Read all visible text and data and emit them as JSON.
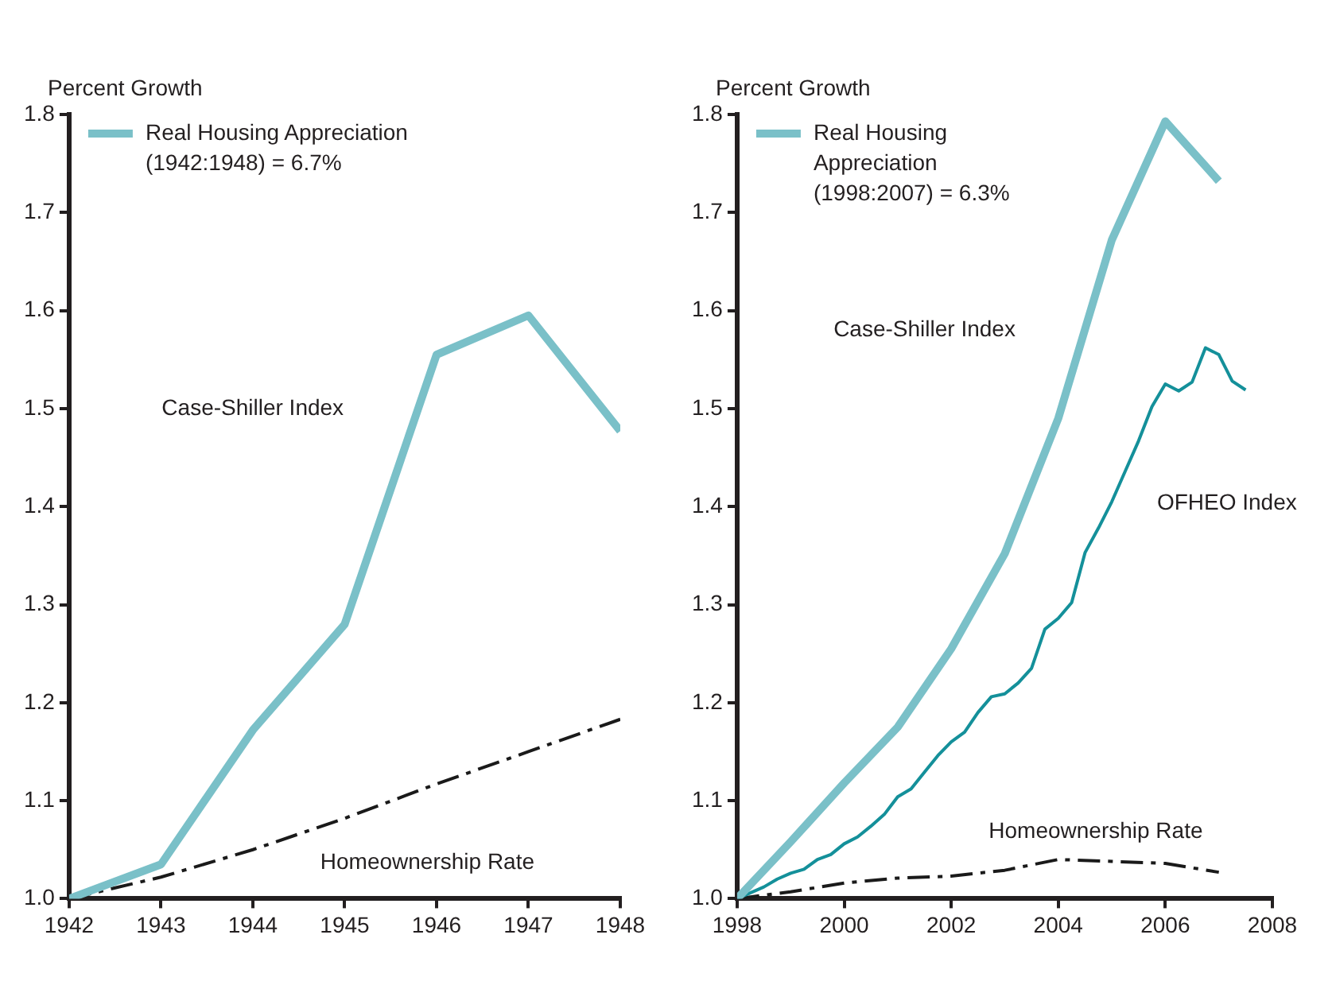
{
  "chart_data": [
    {
      "type": "line",
      "ylabel": "Percent Growth",
      "x": [
        1942,
        1943,
        1944,
        1945,
        1946,
        1947,
        1948
      ],
      "xlim": [
        1942,
        1948
      ],
      "xticks": [
        1942,
        1943,
        1944,
        1945,
        1946,
        1947,
        1948
      ],
      "ylim": [
        1.0,
        1.8
      ],
      "yticks": [
        {
          "value": 1.0,
          "label": "1.0"
        },
        1.1,
        1.2,
        1.3,
        1.4,
        1.5,
        1.6,
        1.7,
        1.8
      ],
      "grid": false,
      "legend": "top left",
      "marker": "none",
      "series": [
        {
          "name": "Real Housing Appreciation (1942:1948) = 6.7%",
          "color": "#7ac0c8",
          "values": [
            1.0,
            1.035,
            1.172,
            1.28,
            1.555,
            1.595,
            1.477
          ]
        },
        {
          "color": "#1a1a1a",
          "line_style": "dashed",
          "values": [
            1.0,
            1.022,
            1.05,
            1.082,
            1.117,
            1.15,
            1.183
          ]
        }
      ],
      "annotations": [
        "Case-Shiller Index",
        "Homeownership Rate"
      ]
    },
    {
      "type": "line",
      "ylabel": "Percent Growth",
      "x": [
        1998,
        1999,
        2000,
        2001,
        2002,
        2003,
        2004,
        2005,
        2006,
        2007
      ],
      "xlim": [
        1998,
        2008
      ],
      "xticks": [
        1998,
        2000,
        2002,
        2004,
        2006,
        2008
      ],
      "ylim": [
        1.0,
        1.8
      ],
      "yticks": [
        {
          "value": 1.0,
          "label": "1.0"
        },
        1.1,
        1.2,
        1.3,
        1.4,
        1.5,
        1.6,
        1.7,
        1.8
      ],
      "grid": false,
      "legend": "top left",
      "marker": "none",
      "series": [
        {
          "name": "Real Housing Appreciation (1998:2007) = 6.3%",
          "color": "#7ac0c8",
          "values": [
            1.0,
            1.058,
            1.118,
            1.175,
            1.255,
            1.352,
            1.49,
            1.672,
            1.793,
            1.732
          ]
        },
        {
          "color": "#14909a",
          "x": [
            1998,
            1998.5,
            1998.75,
            1999,
            1999.25,
            1999.5,
            1999.75,
            2000,
            2000.25,
            2000.5,
            2000.75,
            2001,
            2001.25,
            2001.5,
            2001.75,
            2002,
            2002.25,
            2002.5,
            2002.75,
            2003,
            2003.25,
            2003.5,
            2003.75,
            2004,
            2004.25,
            2004.5,
            2004.75,
            2005,
            2005.25,
            2005.5,
            2005.75,
            2006,
            2006.25,
            2006.5,
            2006.75,
            2007,
            2007.25,
            2007.5
          ],
          "values": [
            1.0,
            1.012,
            1.02,
            1.026,
            1.03,
            1.04,
            1.045,
            1.056,
            1.063,
            1.074,
            1.086,
            1.104,
            1.112,
            1.129,
            1.146,
            1.16,
            1.17,
            1.19,
            1.206,
            1.209,
            1.22,
            1.235,
            1.275,
            1.286,
            1.302,
            1.353,
            1.378,
            1.405,
            1.436,
            1.467,
            1.502,
            1.525,
            1.518,
            1.527,
            1.562,
            1.555,
            1.528,
            1.519
          ]
        },
        {
          "color": "#1a1a1a",
          "line_style": "dashed",
          "values": [
            1.0,
            1.007,
            1.016,
            1.021,
            1.023,
            1.029,
            1.04,
            1.038,
            1.036,
            1.027
          ]
        }
      ],
      "annotations": [
        "Case-Shiller Index",
        "OFHEO Index",
        "Homeownership Rate"
      ]
    }
  ]
}
